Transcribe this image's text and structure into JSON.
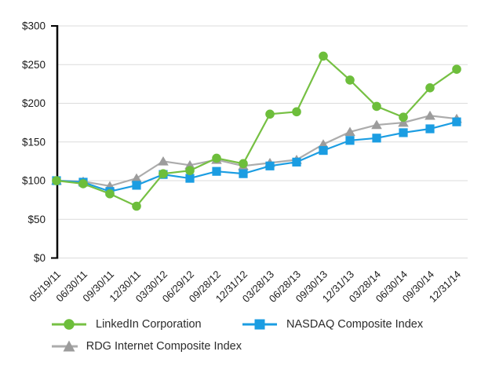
{
  "chart_data": {
    "type": "line",
    "title": "",
    "xlabel": "",
    "ylabel": "",
    "ylim": [
      0,
      300
    ],
    "grid": true,
    "legend_position": "bottom",
    "y_ticks": [
      "$0",
      "$50",
      "$100",
      "$150",
      "$200",
      "$250",
      "$300"
    ],
    "y_tick_values": [
      0,
      50,
      100,
      150,
      200,
      250,
      300
    ],
    "categories": [
      "05/19/11",
      "06/30/11",
      "09/30/11",
      "12/30/11",
      "03/30/12",
      "06/29/12",
      "09/28/12",
      "12/31/12",
      "03/28/13",
      "06/28/13",
      "09/30/13",
      "12/31/13",
      "03/28/14",
      "06/30/14",
      "09/30/14",
      "12/31/14"
    ],
    "series": [
      {
        "name": "LinkedIn Corporation",
        "marker": "circle",
        "line_color": "#76C043",
        "marker_color": "#6DBE3B",
        "values": [
          100,
          96,
          83,
          67,
          109,
          113,
          129,
          122,
          186,
          189,
          261,
          230,
          196,
          182,
          220,
          244
        ]
      },
      {
        "name": "NASDAQ Composite Index",
        "marker": "square",
        "line_color": "#1B9DE2",
        "marker_color": "#1B9DE2",
        "values": [
          100,
          98,
          86,
          94,
          108,
          103,
          112,
          109,
          119,
          124,
          139,
          152,
          155,
          162,
          167,
          176
        ]
      },
      {
        "name": "RDG Internet Composite Index",
        "marker": "triangle",
        "line_color": "#ACACAC",
        "marker_color": "#9C9C9C",
        "values": [
          100,
          99,
          93,
          103,
          125,
          120,
          127,
          119,
          123,
          127,
          147,
          163,
          172,
          175,
          184,
          180
        ]
      }
    ],
    "style": {
      "grid_color": "#DBDBDB",
      "axis_color": "#000000",
      "background": "#FFFFFF"
    }
  }
}
